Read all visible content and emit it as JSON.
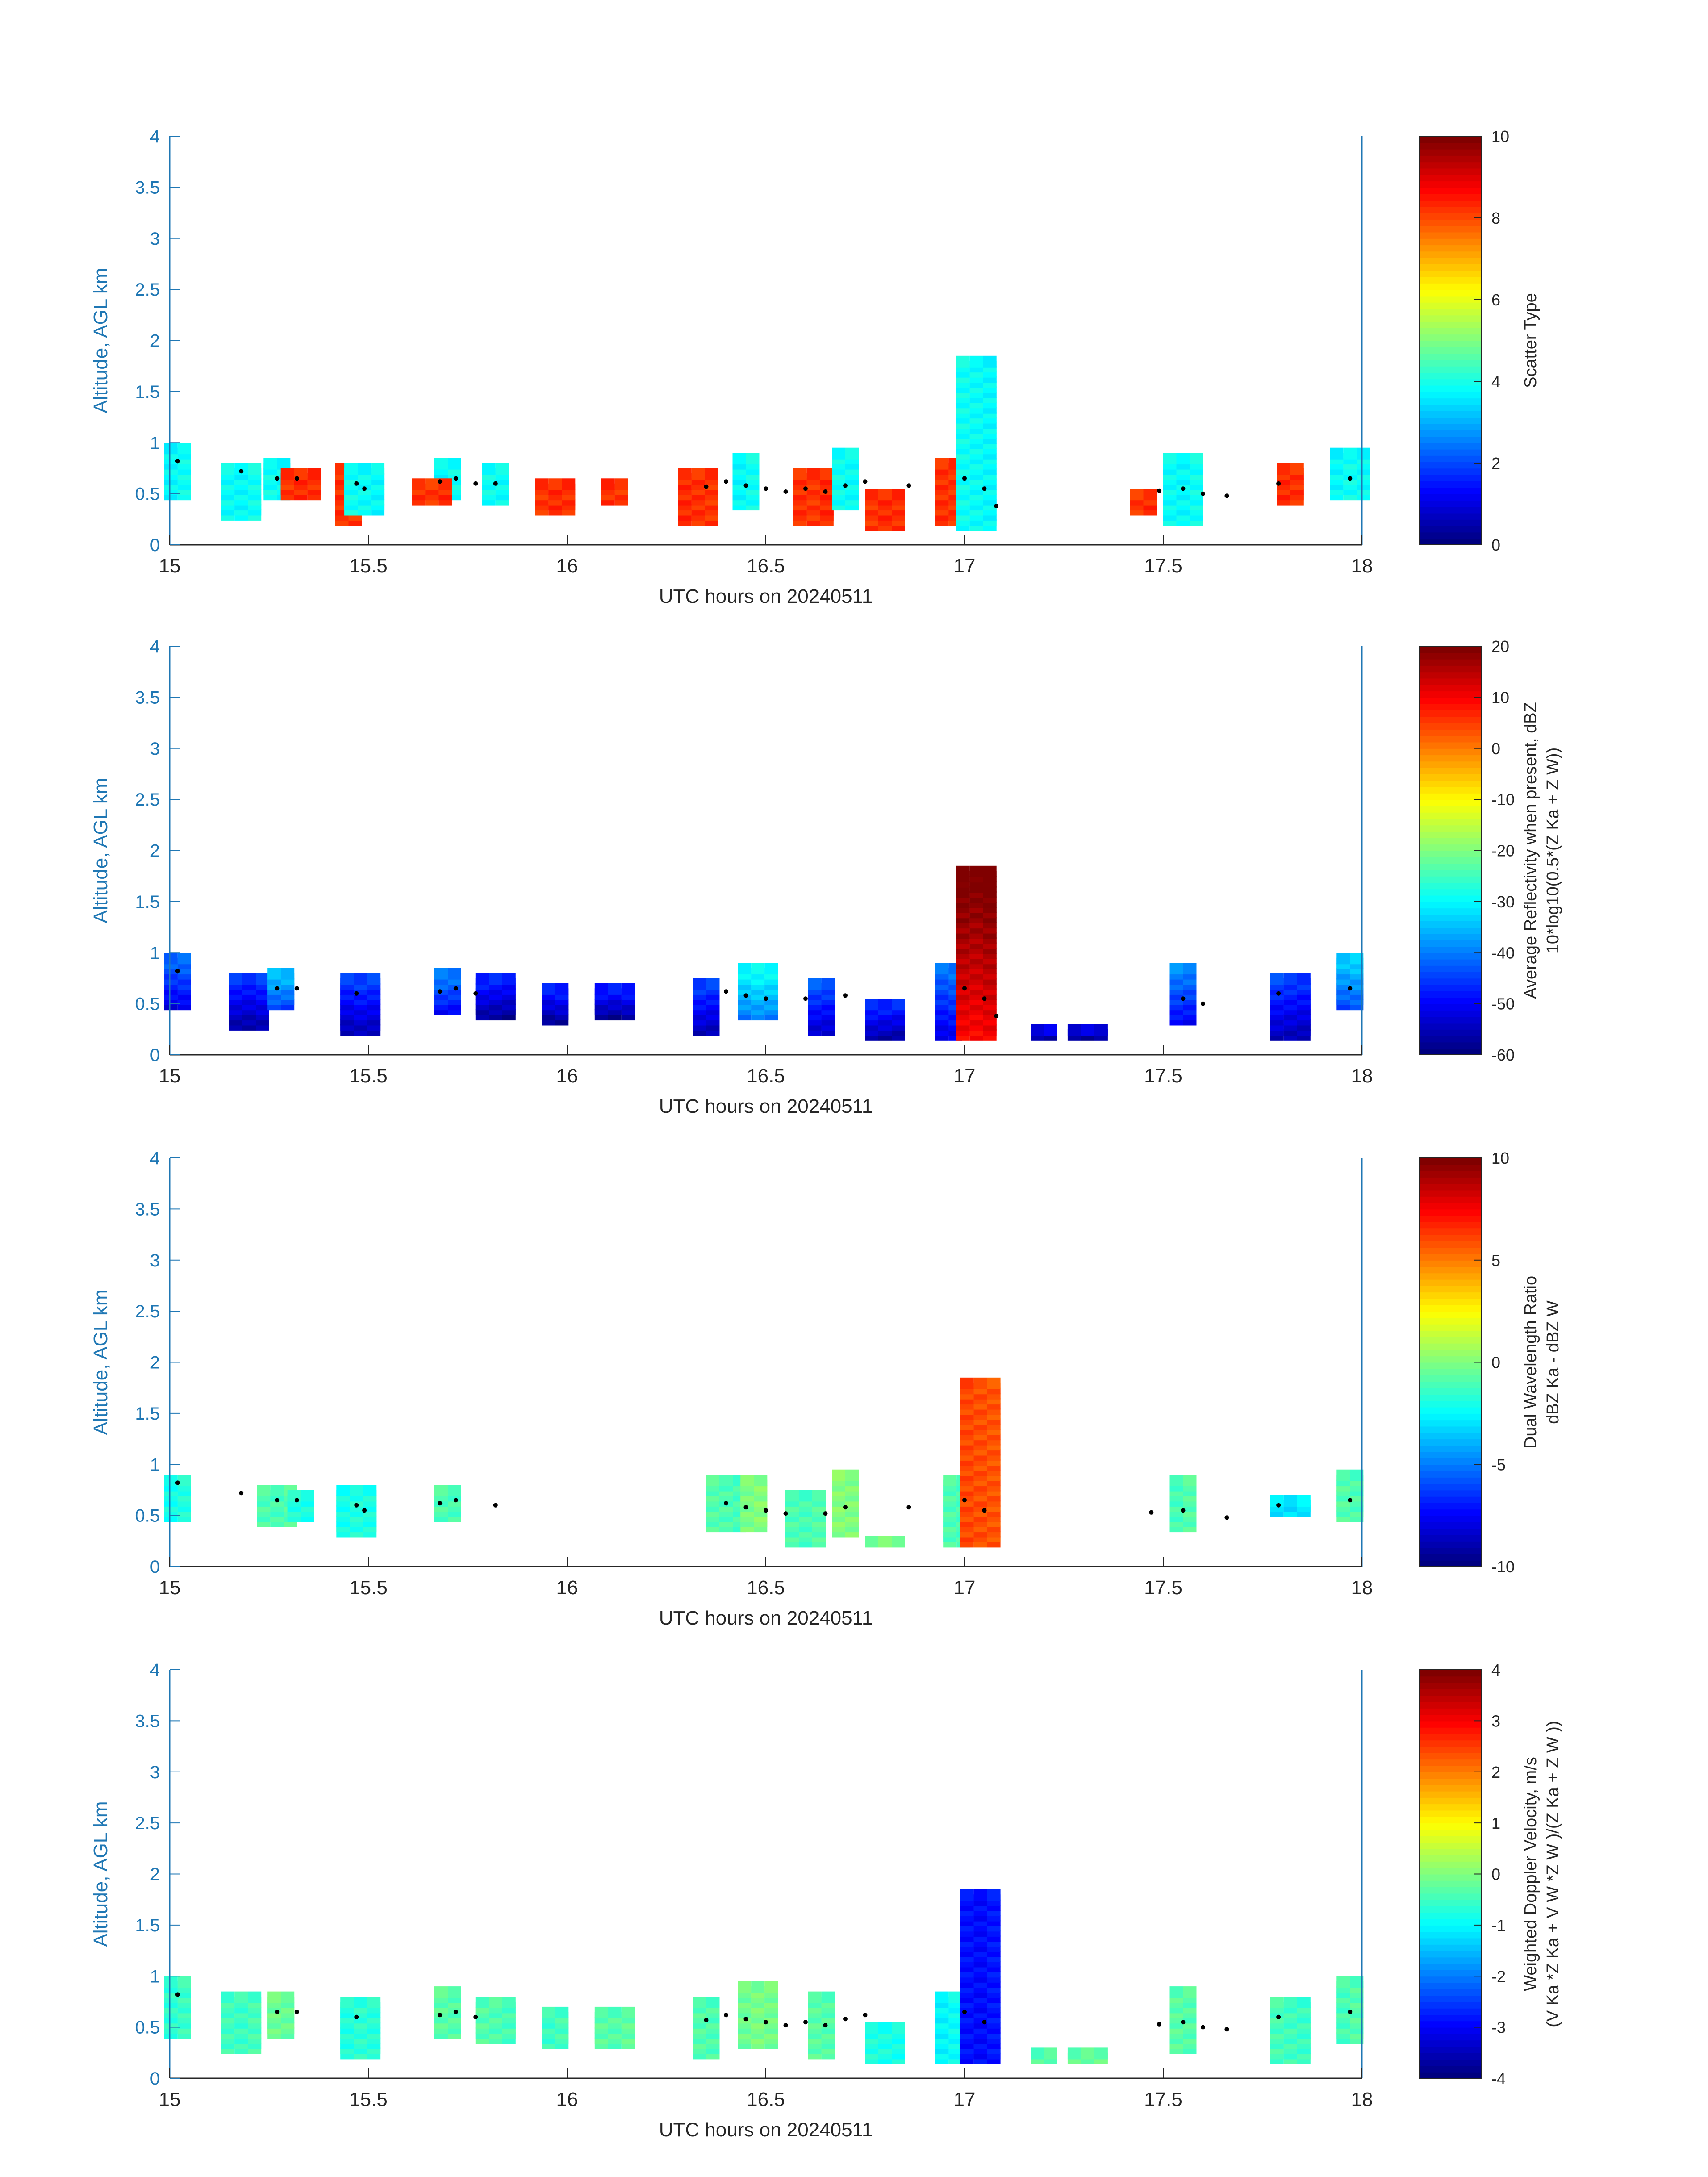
{
  "figure": {
    "colormap": "jet"
  },
  "chart_data": [
    {
      "type": "heatmap",
      "xlabel": "UTC hours on 20240511",
      "ylabel": "Altitude, AGL km",
      "xlim": [
        15,
        18
      ],
      "ylim": [
        0,
        4
      ],
      "xticks": [
        "15",
        "15.5",
        "16",
        "16.5",
        "17",
        "17.5",
        "18"
      ],
      "yticks": [
        "0",
        "0.5",
        "1",
        "1.5",
        "2",
        "2.5",
        "3",
        "3.5",
        "4"
      ],
      "colorbar": {
        "label": [
          "Scatter Type"
        ],
        "range": [
          0,
          10
        ],
        "ticks": [
          "0",
          "2",
          "4",
          "6",
          "8",
          "10"
        ]
      },
      "columns": [
        {
          "x": 15.02,
          "bottom": 0.5,
          "top": 0.96,
          "value": 3.8
        },
        {
          "x": 15.18,
          "bottom": 0.3,
          "top": 0.8,
          "value": 3.8
        },
        {
          "x": 15.27,
          "bottom": 0.5,
          "top": 0.85,
          "value": 3.8
        },
        {
          "x": 15.33,
          "bottom": 0.5,
          "top": 0.75,
          "value": 8.3
        },
        {
          "x": 15.45,
          "bottom": 0.25,
          "top": 0.8,
          "value": 8.3
        },
        {
          "x": 15.49,
          "bottom": 0.35,
          "top": 0.8,
          "value": 3.8
        },
        {
          "x": 15.7,
          "bottom": 0.5,
          "top": 0.85,
          "value": 3.8
        },
        {
          "x": 15.66,
          "bottom": 0.45,
          "top": 0.65,
          "value": 8.3
        },
        {
          "x": 15.82,
          "bottom": 0.45,
          "top": 0.8,
          "value": 3.8
        },
        {
          "x": 15.97,
          "bottom": 0.35,
          "top": 0.65,
          "value": 8.3
        },
        {
          "x": 16.12,
          "bottom": 0.45,
          "top": 0.65,
          "value": 8.3
        },
        {
          "x": 16.33,
          "bottom": 0.25,
          "top": 0.75,
          "value": 8.3
        },
        {
          "x": 16.45,
          "bottom": 0.4,
          "top": 0.9,
          "value": 3.8
        },
        {
          "x": 16.62,
          "bottom": 0.25,
          "top": 0.75,
          "value": 8.3
        },
        {
          "x": 16.7,
          "bottom": 0.4,
          "top": 0.95,
          "value": 3.8
        },
        {
          "x": 16.8,
          "bottom": 0.2,
          "top": 0.55,
          "value": 8.3
        },
        {
          "x": 16.96,
          "bottom": 0.25,
          "top": 0.85,
          "value": 8.3
        },
        {
          "x": 17.03,
          "bottom": 0.2,
          "top": 1.85,
          "value": 3.8
        },
        {
          "x": 17.45,
          "bottom": 0.35,
          "top": 0.55,
          "value": 8.3
        },
        {
          "x": 17.55,
          "bottom": 0.25,
          "top": 0.9,
          "value": 3.8
        },
        {
          "x": 17.82,
          "bottom": 0.45,
          "top": 0.8,
          "value": 8.3
        },
        {
          "x": 17.97,
          "bottom": 0.5,
          "top": 0.95,
          "value": 3.8
        }
      ],
      "markers": [
        {
          "x": 15.02,
          "y": 0.82
        },
        {
          "x": 15.18,
          "y": 0.72
        },
        {
          "x": 15.27,
          "y": 0.65
        },
        {
          "x": 15.32,
          "y": 0.65
        },
        {
          "x": 15.47,
          "y": 0.6
        },
        {
          "x": 15.49,
          "y": 0.55
        },
        {
          "x": 15.68,
          "y": 0.62
        },
        {
          "x": 15.72,
          "y": 0.65
        },
        {
          "x": 15.77,
          "y": 0.6
        },
        {
          "x": 15.82,
          "y": 0.6
        },
        {
          "x": 16.35,
          "y": 0.57
        },
        {
          "x": 16.4,
          "y": 0.62
        },
        {
          "x": 16.45,
          "y": 0.58
        },
        {
          "x": 16.5,
          "y": 0.55
        },
        {
          "x": 16.55,
          "y": 0.52
        },
        {
          "x": 16.6,
          "y": 0.55
        },
        {
          "x": 16.65,
          "y": 0.52
        },
        {
          "x": 16.7,
          "y": 0.58
        },
        {
          "x": 16.75,
          "y": 0.62
        },
        {
          "x": 16.86,
          "y": 0.58
        },
        {
          "x": 17.0,
          "y": 0.65
        },
        {
          "x": 17.05,
          "y": 0.55
        },
        {
          "x": 17.08,
          "y": 0.38
        },
        {
          "x": 17.49,
          "y": 0.53
        },
        {
          "x": 17.55,
          "y": 0.55
        },
        {
          "x": 17.6,
          "y": 0.5
        },
        {
          "x": 17.66,
          "y": 0.48
        },
        {
          "x": 17.79,
          "y": 0.6
        },
        {
          "x": 17.97,
          "y": 0.65
        }
      ]
    },
    {
      "type": "heatmap",
      "xlabel": "UTC hours on 20240511",
      "ylabel": "Altitude, AGL km",
      "xlim": [
        15,
        18
      ],
      "ylim": [
        0,
        4
      ],
      "xticks": [
        "15",
        "15.5",
        "16",
        "16.5",
        "17",
        "17.5",
        "18"
      ],
      "yticks": [
        "0",
        "0.5",
        "1",
        "1.5",
        "2",
        "2.5",
        "3",
        "3.5",
        "4"
      ],
      "colorbar": {
        "label": [
          "Average Reflectivity when present, dBZ",
          "10*log10(0.5*(Z Ka + Z W))"
        ],
        "range": [
          -60,
          20
        ],
        "ticks": [
          "-60",
          "-50",
          "-40",
          "-30",
          "-20",
          "-10",
          "0",
          "10",
          "20"
        ]
      },
      "columns": [
        {
          "x": 15.02,
          "bottom": 0.5,
          "top": 1.0,
          "value": -52
        },
        {
          "x": 15.2,
          "bottom": 0.3,
          "top": 0.8,
          "value": -57
        },
        {
          "x": 15.28,
          "bottom": 0.5,
          "top": 0.85,
          "value": -45
        },
        {
          "x": 15.48,
          "bottom": 0.25,
          "top": 0.8,
          "value": -56
        },
        {
          "x": 15.7,
          "bottom": 0.45,
          "top": 0.85,
          "value": -50
        },
        {
          "x": 15.82,
          "bottom": 0.4,
          "top": 0.8,
          "value": -58
        },
        {
          "x": 15.97,
          "bottom": 0.35,
          "top": 0.7,
          "value": -58
        },
        {
          "x": 16.12,
          "bottom": 0.4,
          "top": 0.7,
          "value": -58
        },
        {
          "x": 16.35,
          "bottom": 0.25,
          "top": 0.75,
          "value": -56
        },
        {
          "x": 16.48,
          "bottom": 0.4,
          "top": 0.9,
          "value": -40
        },
        {
          "x": 16.64,
          "bottom": 0.25,
          "top": 0.75,
          "value": -54
        },
        {
          "x": 16.8,
          "bottom": 0.2,
          "top": 0.55,
          "value": -57
        },
        {
          "x": 16.96,
          "bottom": 0.2,
          "top": 0.9,
          "value": -52
        },
        {
          "x": 17.03,
          "bottom": 0.2,
          "top": 1.85,
          "value": 10
        },
        {
          "x": 17.2,
          "bottom": 0.2,
          "top": 0.3,
          "value": -58
        },
        {
          "x": 17.31,
          "bottom": 0.2,
          "top": 0.3,
          "value": -58
        },
        {
          "x": 17.55,
          "bottom": 0.35,
          "top": 0.9,
          "value": -50
        },
        {
          "x": 17.82,
          "bottom": 0.2,
          "top": 0.8,
          "value": -56
        },
        {
          "x": 17.97,
          "bottom": 0.5,
          "top": 1.0,
          "value": -44
        }
      ],
      "markers": [
        {
          "x": 15.02,
          "y": 0.82
        },
        {
          "x": 15.27,
          "y": 0.65
        },
        {
          "x": 15.32,
          "y": 0.65
        },
        {
          "x": 15.47,
          "y": 0.6
        },
        {
          "x": 15.68,
          "y": 0.62
        },
        {
          "x": 15.72,
          "y": 0.65
        },
        {
          "x": 15.77,
          "y": 0.6
        },
        {
          "x": 16.4,
          "y": 0.62
        },
        {
          "x": 16.45,
          "y": 0.58
        },
        {
          "x": 16.5,
          "y": 0.55
        },
        {
          "x": 16.6,
          "y": 0.55
        },
        {
          "x": 16.7,
          "y": 0.58
        },
        {
          "x": 17.0,
          "y": 0.65
        },
        {
          "x": 17.05,
          "y": 0.55
        },
        {
          "x": 17.08,
          "y": 0.38
        },
        {
          "x": 17.55,
          "y": 0.55
        },
        {
          "x": 17.6,
          "y": 0.5
        },
        {
          "x": 17.79,
          "y": 0.6
        },
        {
          "x": 17.97,
          "y": 0.65
        }
      ]
    },
    {
      "type": "heatmap",
      "xlabel": "UTC hours on 20240511",
      "ylabel": "Altitude, AGL km",
      "xlim": [
        15,
        18
      ],
      "ylim": [
        0,
        4
      ],
      "xticks": [
        "15",
        "15.5",
        "16",
        "16.5",
        "17",
        "17.5",
        "18"
      ],
      "yticks": [
        "0",
        "0.5",
        "1",
        "1.5",
        "2",
        "2.5",
        "3",
        "3.5",
        "4"
      ],
      "colorbar": {
        "label": [
          "Dual Wavelength Ratio",
          "dBZ Ka - dBZ W"
        ],
        "range": [
          -10,
          10
        ],
        "ticks": [
          "-10",
          "-5",
          "0",
          "5",
          "10"
        ]
      },
      "columns": [
        {
          "x": 15.02,
          "bottom": 0.5,
          "top": 0.9,
          "value": -2
        },
        {
          "x": 15.27,
          "bottom": 0.45,
          "top": 0.8,
          "value": -1
        },
        {
          "x": 15.33,
          "bottom": 0.5,
          "top": 0.75,
          "value": -2
        },
        {
          "x": 15.47,
          "bottom": 0.35,
          "top": 0.8,
          "value": -2
        },
        {
          "x": 15.7,
          "bottom": 0.5,
          "top": 0.8,
          "value": -1
        },
        {
          "x": 16.4,
          "bottom": 0.4,
          "top": 0.9,
          "value": -1
        },
        {
          "x": 16.47,
          "bottom": 0.4,
          "top": 0.9,
          "value": 0
        },
        {
          "x": 16.6,
          "bottom": 0.25,
          "top": 0.75,
          "value": -1
        },
        {
          "x": 16.7,
          "bottom": 0.35,
          "top": 0.95,
          "value": 0
        },
        {
          "x": 16.8,
          "bottom": 0.25,
          "top": 0.3,
          "value": 0
        },
        {
          "x": 16.98,
          "bottom": 0.25,
          "top": 0.9,
          "value": -1
        },
        {
          "x": 17.04,
          "bottom": 0.25,
          "top": 1.85,
          "value": 6
        },
        {
          "x": 17.55,
          "bottom": 0.4,
          "top": 0.9,
          "value": -1
        },
        {
          "x": 17.82,
          "bottom": 0.55,
          "top": 0.7,
          "value": -3
        },
        {
          "x": 17.97,
          "bottom": 0.5,
          "top": 0.95,
          "value": -1
        }
      ],
      "markers": [
        {
          "x": 15.02,
          "y": 0.82
        },
        {
          "x": 15.18,
          "y": 0.72
        },
        {
          "x": 15.27,
          "y": 0.65
        },
        {
          "x": 15.32,
          "y": 0.65
        },
        {
          "x": 15.47,
          "y": 0.6
        },
        {
          "x": 15.49,
          "y": 0.55
        },
        {
          "x": 15.68,
          "y": 0.62
        },
        {
          "x": 15.72,
          "y": 0.65
        },
        {
          "x": 15.82,
          "y": 0.6
        },
        {
          "x": 16.4,
          "y": 0.62
        },
        {
          "x": 16.45,
          "y": 0.58
        },
        {
          "x": 16.5,
          "y": 0.55
        },
        {
          "x": 16.55,
          "y": 0.52
        },
        {
          "x": 16.65,
          "y": 0.52
        },
        {
          "x": 16.7,
          "y": 0.58
        },
        {
          "x": 16.86,
          "y": 0.58
        },
        {
          "x": 17.0,
          "y": 0.65
        },
        {
          "x": 17.05,
          "y": 0.55
        },
        {
          "x": 17.47,
          "y": 0.53
        },
        {
          "x": 17.55,
          "y": 0.55
        },
        {
          "x": 17.66,
          "y": 0.48
        },
        {
          "x": 17.79,
          "y": 0.6
        },
        {
          "x": 17.97,
          "y": 0.65
        }
      ]
    },
    {
      "type": "heatmap",
      "xlabel": "UTC hours on 20240511",
      "ylabel": "Altitude, AGL km",
      "xlim": [
        15,
        18
      ],
      "ylim": [
        0,
        4
      ],
      "xticks": [
        "15",
        "15.5",
        "16",
        "16.5",
        "17",
        "17.5",
        "18"
      ],
      "yticks": [
        "0",
        "0.5",
        "1",
        "1.5",
        "2",
        "2.5",
        "3",
        "3.5",
        "4"
      ],
      "colorbar": {
        "label": [
          "Weighted Doppler Velocity, m/s",
          "(V Ka *Z Ka + V W *Z W )/(Z Ka + Z W ))"
        ],
        "range": [
          -4,
          4
        ],
        "ticks": [
          "-4",
          "-3",
          "-2",
          "-1",
          "0",
          "1",
          "2",
          "3",
          "4"
        ]
      },
      "columns": [
        {
          "x": 15.02,
          "bottom": 0.45,
          "top": 1.0,
          "value": -0.6
        },
        {
          "x": 15.18,
          "bottom": 0.3,
          "top": 0.85,
          "value": -0.5
        },
        {
          "x": 15.28,
          "bottom": 0.45,
          "top": 0.85,
          "value": -0.2
        },
        {
          "x": 15.48,
          "bottom": 0.25,
          "top": 0.8,
          "value": -0.7
        },
        {
          "x": 15.7,
          "bottom": 0.45,
          "top": 0.9,
          "value": -0.3
        },
        {
          "x": 15.82,
          "bottom": 0.4,
          "top": 0.8,
          "value": -0.4
        },
        {
          "x": 15.97,
          "bottom": 0.35,
          "top": 0.7,
          "value": -0.5
        },
        {
          "x": 16.12,
          "bottom": 0.35,
          "top": 0.7,
          "value": -0.3
        },
        {
          "x": 16.35,
          "bottom": 0.25,
          "top": 0.8,
          "value": -0.4
        },
        {
          "x": 16.48,
          "bottom": 0.35,
          "top": 0.95,
          "value": -0.1
        },
        {
          "x": 16.64,
          "bottom": 0.25,
          "top": 0.85,
          "value": -0.3
        },
        {
          "x": 16.8,
          "bottom": 0.2,
          "top": 0.55,
          "value": -0.8
        },
        {
          "x": 16.96,
          "bottom": 0.2,
          "top": 0.85,
          "value": -1.0
        },
        {
          "x": 17.04,
          "bottom": 0.2,
          "top": 1.85,
          "value": -2.9
        },
        {
          "x": 17.2,
          "bottom": 0.2,
          "top": 0.3,
          "value": -0.4
        },
        {
          "x": 17.31,
          "bottom": 0.2,
          "top": 0.3,
          "value": -0.2
        },
        {
          "x": 17.55,
          "bottom": 0.3,
          "top": 0.9,
          "value": -0.3
        },
        {
          "x": 17.82,
          "bottom": 0.2,
          "top": 0.8,
          "value": -0.5
        },
        {
          "x": 17.97,
          "bottom": 0.4,
          "top": 1.0,
          "value": -0.4
        }
      ],
      "markers": [
        {
          "x": 15.02,
          "y": 0.82
        },
        {
          "x": 15.27,
          "y": 0.65
        },
        {
          "x": 15.32,
          "y": 0.65
        },
        {
          "x": 15.47,
          "y": 0.6
        },
        {
          "x": 15.68,
          "y": 0.62
        },
        {
          "x": 15.72,
          "y": 0.65
        },
        {
          "x": 15.77,
          "y": 0.6
        },
        {
          "x": 16.35,
          "y": 0.57
        },
        {
          "x": 16.4,
          "y": 0.62
        },
        {
          "x": 16.45,
          "y": 0.58
        },
        {
          "x": 16.5,
          "y": 0.55
        },
        {
          "x": 16.55,
          "y": 0.52
        },
        {
          "x": 16.6,
          "y": 0.55
        },
        {
          "x": 16.65,
          "y": 0.52
        },
        {
          "x": 16.7,
          "y": 0.58
        },
        {
          "x": 16.75,
          "y": 0.62
        },
        {
          "x": 17.0,
          "y": 0.65
        },
        {
          "x": 17.05,
          "y": 0.55
        },
        {
          "x": 17.49,
          "y": 0.53
        },
        {
          "x": 17.55,
          "y": 0.55
        },
        {
          "x": 17.6,
          "y": 0.5
        },
        {
          "x": 17.66,
          "y": 0.48
        },
        {
          "x": 17.79,
          "y": 0.6
        },
        {
          "x": 17.97,
          "y": 0.65
        }
      ]
    }
  ]
}
